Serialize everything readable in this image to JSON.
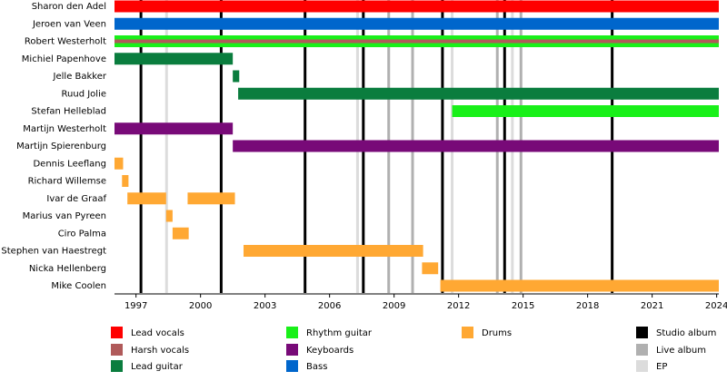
{
  "chart_data": {
    "type": "timeline",
    "xlim": [
      1996,
      2024.1
    ],
    "xticks": [
      1997,
      2000,
      2003,
      2006,
      2009,
      2012,
      2015,
      2018,
      2021,
      2024
    ],
    "roles": [
      {
        "name": "Lead vocals",
        "color": "#ff0000"
      },
      {
        "name": "Harsh vocals",
        "color": "#b05a5a"
      },
      {
        "name": "Lead guitar",
        "color": "#0a7d3e"
      },
      {
        "name": "Rhythm guitar",
        "color": "#19f019"
      },
      {
        "name": "Keyboards",
        "color": "#780a78"
      },
      {
        "name": "Bass",
        "color": "#0066cc"
      },
      {
        "name": "Drums",
        "color": "#ffa833"
      }
    ],
    "event_types": [
      {
        "name": "Studio album",
        "color": "#000000"
      },
      {
        "name": "Live album",
        "color": "#b0b0b0"
      },
      {
        "name": "EP",
        "color": "#dcdcdc"
      }
    ],
    "events": [
      {
        "type": "EP",
        "x": 1998.42
      },
      {
        "type": "EP",
        "x": 2007.3
      },
      {
        "type": "EP",
        "x": 2011.7
      },
      {
        "type": "EP",
        "x": 2014.5
      },
      {
        "type": "Live album",
        "x": 2008.75
      },
      {
        "type": "Live album",
        "x": 2009.86
      },
      {
        "type": "Live album",
        "x": 2013.8
      },
      {
        "type": "Live album",
        "x": 2014.9
      },
      {
        "type": "Studio album",
        "x": 1997.23
      },
      {
        "type": "Studio album",
        "x": 2000.96
      },
      {
        "type": "Studio album",
        "x": 2004.86
      },
      {
        "type": "Studio album",
        "x": 2007.57
      },
      {
        "type": "Studio album",
        "x": 2011.25
      },
      {
        "type": "Studio album",
        "x": 2014.14
      },
      {
        "type": "Studio album",
        "x": 2019.14
      }
    ],
    "members": [
      {
        "name": "Sharon den Adel",
        "periods": [
          {
            "role": "Lead vocals",
            "start": 1996,
            "end": 2024.1
          }
        ]
      },
      {
        "name": "Jeroen van Veen",
        "periods": [
          {
            "role": "Bass",
            "start": 1996,
            "end": 2024.1
          }
        ]
      },
      {
        "name": "Robert Westerholt",
        "periods": [
          {
            "role": "Rhythm guitar",
            "start": 1996,
            "end": 2024.1
          },
          {
            "role": "Harsh vocals",
            "start": 1996,
            "end": 2024.1
          }
        ]
      },
      {
        "name": "Michiel Papenhove",
        "periods": [
          {
            "role": "Lead guitar",
            "start": 1996,
            "end": 2001.5
          }
        ]
      },
      {
        "name": "Jelle Bakker",
        "periods": [
          {
            "role": "Lead guitar",
            "start": 2001.5,
            "end": 2001.8
          }
        ]
      },
      {
        "name": "Ruud Jolie",
        "periods": [
          {
            "role": "Lead guitar",
            "start": 2001.75,
            "end": 2024.1
          }
        ]
      },
      {
        "name": "Stefan Helleblad",
        "periods": [
          {
            "role": "Rhythm guitar",
            "start": 2011.7,
            "end": 2024.1
          }
        ]
      },
      {
        "name": "Martijn Westerholt",
        "periods": [
          {
            "role": "Keyboards",
            "start": 1996,
            "end": 2001.5
          }
        ]
      },
      {
        "name": "Martijn Spierenburg",
        "periods": [
          {
            "role": "Keyboards",
            "start": 2001.5,
            "end": 2024.1
          }
        ]
      },
      {
        "name": "Dennis Leeflang",
        "periods": [
          {
            "role": "Drums",
            "start": 1996,
            "end": 1996.4
          }
        ]
      },
      {
        "name": "Richard Willemse",
        "periods": [
          {
            "role": "Drums",
            "start": 1996.35,
            "end": 1996.65
          }
        ]
      },
      {
        "name": "Ivar de Graaf",
        "periods": [
          {
            "role": "Drums",
            "start": 1996.6,
            "end": 1998.4
          },
          {
            "role": "Drums",
            "start": 1999.4,
            "end": 2001.6
          }
        ]
      },
      {
        "name": "Marius van Pyreen",
        "periods": [
          {
            "role": "Drums",
            "start": 1998.4,
            "end": 1998.7
          }
        ]
      },
      {
        "name": "Ciro Palma",
        "periods": [
          {
            "role": "Drums",
            "start": 1998.7,
            "end": 1999.45
          }
        ]
      },
      {
        "name": "Stephen van Haestregt",
        "periods": [
          {
            "role": "Drums",
            "start": 2002.0,
            "end": 2010.35
          }
        ]
      },
      {
        "name": "Nicka Hellenberg",
        "periods": [
          {
            "role": "Drums",
            "start": 2010.3,
            "end": 2011.05
          }
        ]
      },
      {
        "name": "Mike Coolen",
        "periods": [
          {
            "role": "Drums",
            "start": 2011.15,
            "end": 2024.1
          }
        ]
      }
    ]
  }
}
